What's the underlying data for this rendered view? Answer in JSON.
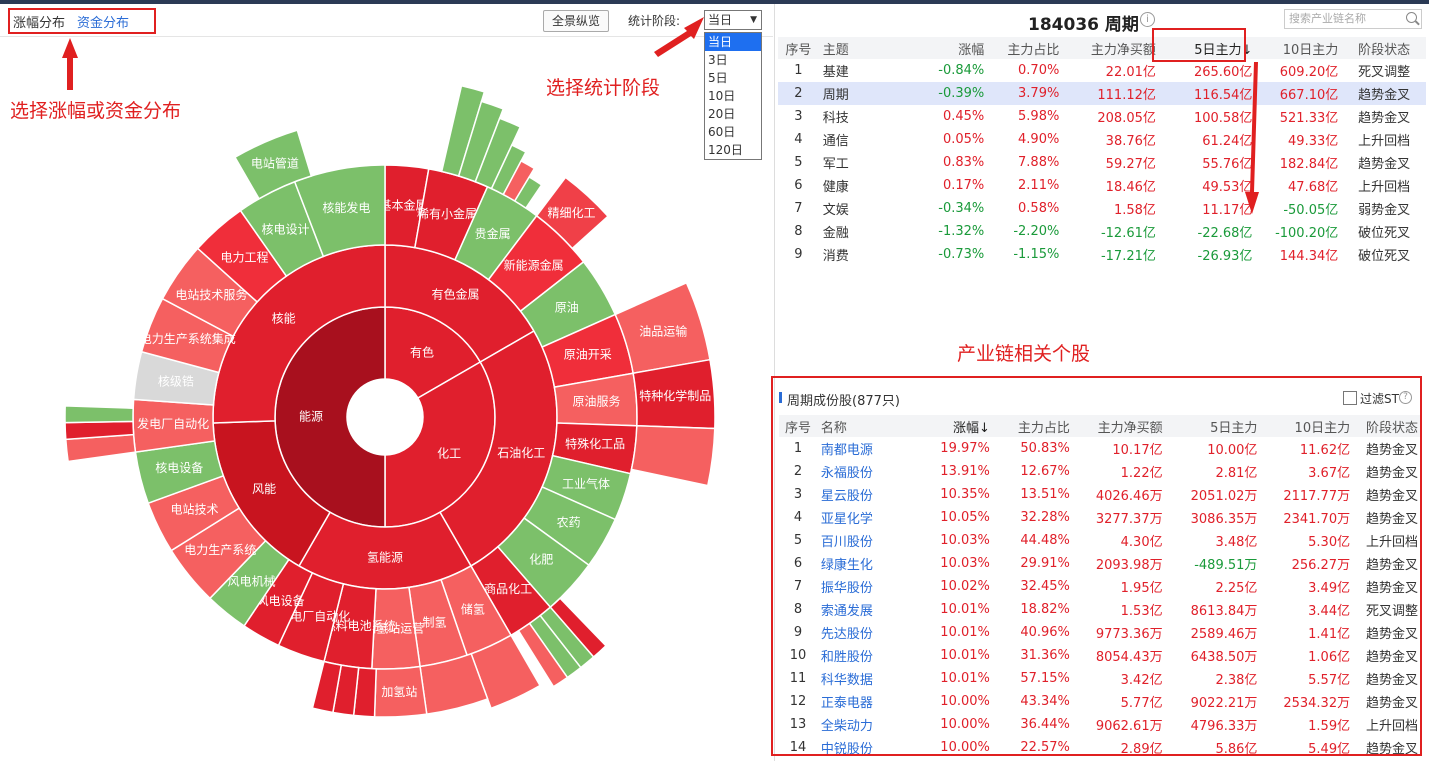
{
  "left_panel": {
    "mode_tabs": [
      {
        "label": "涨幅分布",
        "active": false
      },
      {
        "label": "资金分布",
        "active": true
      }
    ],
    "overview_button": "全景纵览",
    "stat_period_label": "统计阶段:",
    "period_selected": "当日",
    "period_options": [
      "当日",
      "3日",
      "5日",
      "10日",
      "20日",
      "60日",
      "120日"
    ],
    "annotations": {
      "mode": "选择涨幅或资金分布",
      "period": "选择统计阶段"
    }
  },
  "sunburst": {
    "colors": {
      "dark": "#a8101e",
      "red": "#e01f2d",
      "mid": "#f02e3a",
      "light_red": "#f56060",
      "green": "#7cc06a",
      "gray": "#d9d9d9"
    },
    "inner": [
      {
        "label": "有色"
      },
      {
        "label": "化工"
      },
      {
        "label": "能源"
      }
    ],
    "ring2": [
      {
        "label": "有色金属"
      },
      {
        "label": "石油化工"
      },
      {
        "label": "氢能源"
      },
      {
        "label": "风能"
      },
      {
        "label": "核能"
      }
    ],
    "ring3": [
      {
        "label": "基本金属"
      },
      {
        "label": "稀有小金属"
      },
      {
        "label": "贵金属"
      },
      {
        "label": "新能源金属"
      },
      {
        "label": "原油"
      },
      {
        "label": "原油开采"
      },
      {
        "label": "原油服务"
      },
      {
        "label": "特殊化工品"
      },
      {
        "label": "工业气体"
      },
      {
        "label": "农药"
      },
      {
        "label": "化肥"
      },
      {
        "label": "商品化工"
      },
      {
        "label": "储氢"
      },
      {
        "label": "制氢"
      },
      {
        "label": "加氢站运营"
      },
      {
        "label": "氢燃料电池系统"
      },
      {
        "label": "发电厂自动化"
      },
      {
        "label": "风电设备"
      },
      {
        "label": "风电机械"
      },
      {
        "label": "电力生产系统"
      },
      {
        "label": "电站技术"
      },
      {
        "label": "核电设备"
      },
      {
        "label": "发电厂自动化"
      },
      {
        "label": "核级锆"
      },
      {
        "label": "电力生产系统集成"
      },
      {
        "label": "电站技术服务"
      },
      {
        "label": "电力工程"
      },
      {
        "label": "核电设计"
      },
      {
        "label": "核能发电"
      }
    ],
    "outer_labels": [
      {
        "label": "电站管道"
      },
      {
        "label": "精细化工"
      },
      {
        "label": "油品运输"
      },
      {
        "label": "特种化学制品"
      },
      {
        "label": "加氢站"
      }
    ]
  },
  "chain_header": {
    "code": "184036",
    "name": "周期",
    "search_placeholder": "搜索产业链名称"
  },
  "chain_table": {
    "columns": [
      "序号",
      "主题",
      "涨幅",
      "主力占比",
      "主力净买额",
      "5日主力↓",
      "10日主力",
      "阶段状态"
    ],
    "rows": [
      {
        "no": "1",
        "theme": "基建",
        "chg": "-0.84%",
        "ratio": "0.70%",
        "net": "22.01亿",
        "d5": "265.60亿",
        "d10": "609.20亿",
        "state": "死叉调整"
      },
      {
        "no": "2",
        "theme": "周期",
        "chg": "-0.39%",
        "ratio": "3.79%",
        "net": "111.12亿",
        "d5": "116.54亿",
        "d10": "667.10亿",
        "state": "趋势金叉"
      },
      {
        "no": "3",
        "theme": "科技",
        "chg": "0.45%",
        "ratio": "5.98%",
        "net": "208.05亿",
        "d5": "100.58亿",
        "d10": "521.33亿",
        "state": "趋势金叉"
      },
      {
        "no": "4",
        "theme": "通信",
        "chg": "0.05%",
        "ratio": "4.90%",
        "net": "38.76亿",
        "d5": "61.24亿",
        "d10": "49.33亿",
        "state": "上升回档"
      },
      {
        "no": "5",
        "theme": "军工",
        "chg": "0.83%",
        "ratio": "7.88%",
        "net": "59.27亿",
        "d5": "55.76亿",
        "d10": "182.84亿",
        "state": "趋势金叉"
      },
      {
        "no": "6",
        "theme": "健康",
        "chg": "0.17%",
        "ratio": "2.11%",
        "net": "18.46亿",
        "d5": "49.53亿",
        "d10": "47.68亿",
        "state": "上升回档"
      },
      {
        "no": "7",
        "theme": "文娱",
        "chg": "-0.34%",
        "ratio": "0.58%",
        "net": "1.58亿",
        "d5": "11.17亿",
        "d10": "-50.05亿",
        "state": "弱势金叉"
      },
      {
        "no": "8",
        "theme": "金融",
        "chg": "-1.32%",
        "ratio": "-2.20%",
        "net": "-12.61亿",
        "d5": "-22.68亿",
        "d10": "-100.20亿",
        "state": "破位死叉"
      },
      {
        "no": "9",
        "theme": "消费",
        "chg": "-0.73%",
        "ratio": "-1.15%",
        "net": "-17.21亿",
        "d5": "-26.93亿",
        "d10": "144.34亿",
        "state": "破位死叉"
      }
    ]
  },
  "stocks_annotation": "产业链相关个股",
  "stocks": {
    "title": "周期成份股(877只)",
    "filter_label": "过滤ST",
    "columns": [
      "序号",
      "名称",
      "涨幅↓",
      "主力占比",
      "主力净买额",
      "5日主力",
      "10日主力",
      "阶段状态"
    ],
    "rows": [
      {
        "no": "1",
        "name": "南都电源",
        "chg": "19.97%",
        "ratio": "50.83%",
        "net": "10.17亿",
        "d5": "10.00亿",
        "d10": "11.62亿",
        "state": "趋势金叉"
      },
      {
        "no": "2",
        "name": "永福股份",
        "chg": "13.91%",
        "ratio": "12.67%",
        "net": "1.22亿",
        "d5": "2.81亿",
        "d10": "3.67亿",
        "state": "趋势金叉"
      },
      {
        "no": "3",
        "name": "星云股份",
        "chg": "10.35%",
        "ratio": "13.51%",
        "net": "4026.46万",
        "d5": "2051.02万",
        "d10": "2117.77万",
        "state": "趋势金叉"
      },
      {
        "no": "4",
        "name": "亚星化学",
        "chg": "10.05%",
        "ratio": "32.28%",
        "net": "3277.37万",
        "d5": "3086.35万",
        "d10": "2341.70万",
        "state": "趋势金叉"
      },
      {
        "no": "5",
        "name": "百川股份",
        "chg": "10.03%",
        "ratio": "44.48%",
        "net": "4.30亿",
        "d5": "3.48亿",
        "d10": "5.30亿",
        "state": "上升回档"
      },
      {
        "no": "6",
        "name": "绿康生化",
        "chg": "10.03%",
        "ratio": "29.91%",
        "net": "2093.98万",
        "d5": "-489.51万",
        "d10": "256.27万",
        "state": "趋势金叉"
      },
      {
        "no": "7",
        "name": "振华股份",
        "chg": "10.02%",
        "ratio": "32.45%",
        "net": "1.95亿",
        "d5": "2.25亿",
        "d10": "3.49亿",
        "state": "趋势金叉"
      },
      {
        "no": "8",
        "name": "索通发展",
        "chg": "10.01%",
        "ratio": "18.82%",
        "net": "1.53亿",
        "d5": "8613.84万",
        "d10": "3.44亿",
        "state": "死叉调整"
      },
      {
        "no": "9",
        "name": "先达股份",
        "chg": "10.01%",
        "ratio": "40.96%",
        "net": "9773.36万",
        "d5": "2589.46万",
        "d10": "1.41亿",
        "state": "趋势金叉"
      },
      {
        "no": "10",
        "name": "和胜股份",
        "chg": "10.01%",
        "ratio": "31.36%",
        "net": "8054.43万",
        "d5": "6438.50万",
        "d10": "1.06亿",
        "state": "趋势金叉"
      },
      {
        "no": "11",
        "name": "科华数据",
        "chg": "10.01%",
        "ratio": "57.15%",
        "net": "3.42亿",
        "d5": "2.38亿",
        "d10": "5.57亿",
        "state": "趋势金叉"
      },
      {
        "no": "12",
        "name": "正泰电器",
        "chg": "10.00%",
        "ratio": "43.34%",
        "net": "5.77亿",
        "d5": "9022.21万",
        "d10": "2534.32万",
        "state": "趋势金叉"
      },
      {
        "no": "13",
        "name": "全柴动力",
        "chg": "10.00%",
        "ratio": "36.44%",
        "net": "9062.61万",
        "d5": "4796.33万",
        "d10": "1.59亿",
        "state": "上升回档"
      },
      {
        "no": "14",
        "name": "中锐股份",
        "chg": "10.00%",
        "ratio": "22.57%",
        "net": "2.89亿",
        "d5": "5.86亿",
        "d10": "5.49亿",
        "state": "趋势金叉"
      }
    ]
  }
}
